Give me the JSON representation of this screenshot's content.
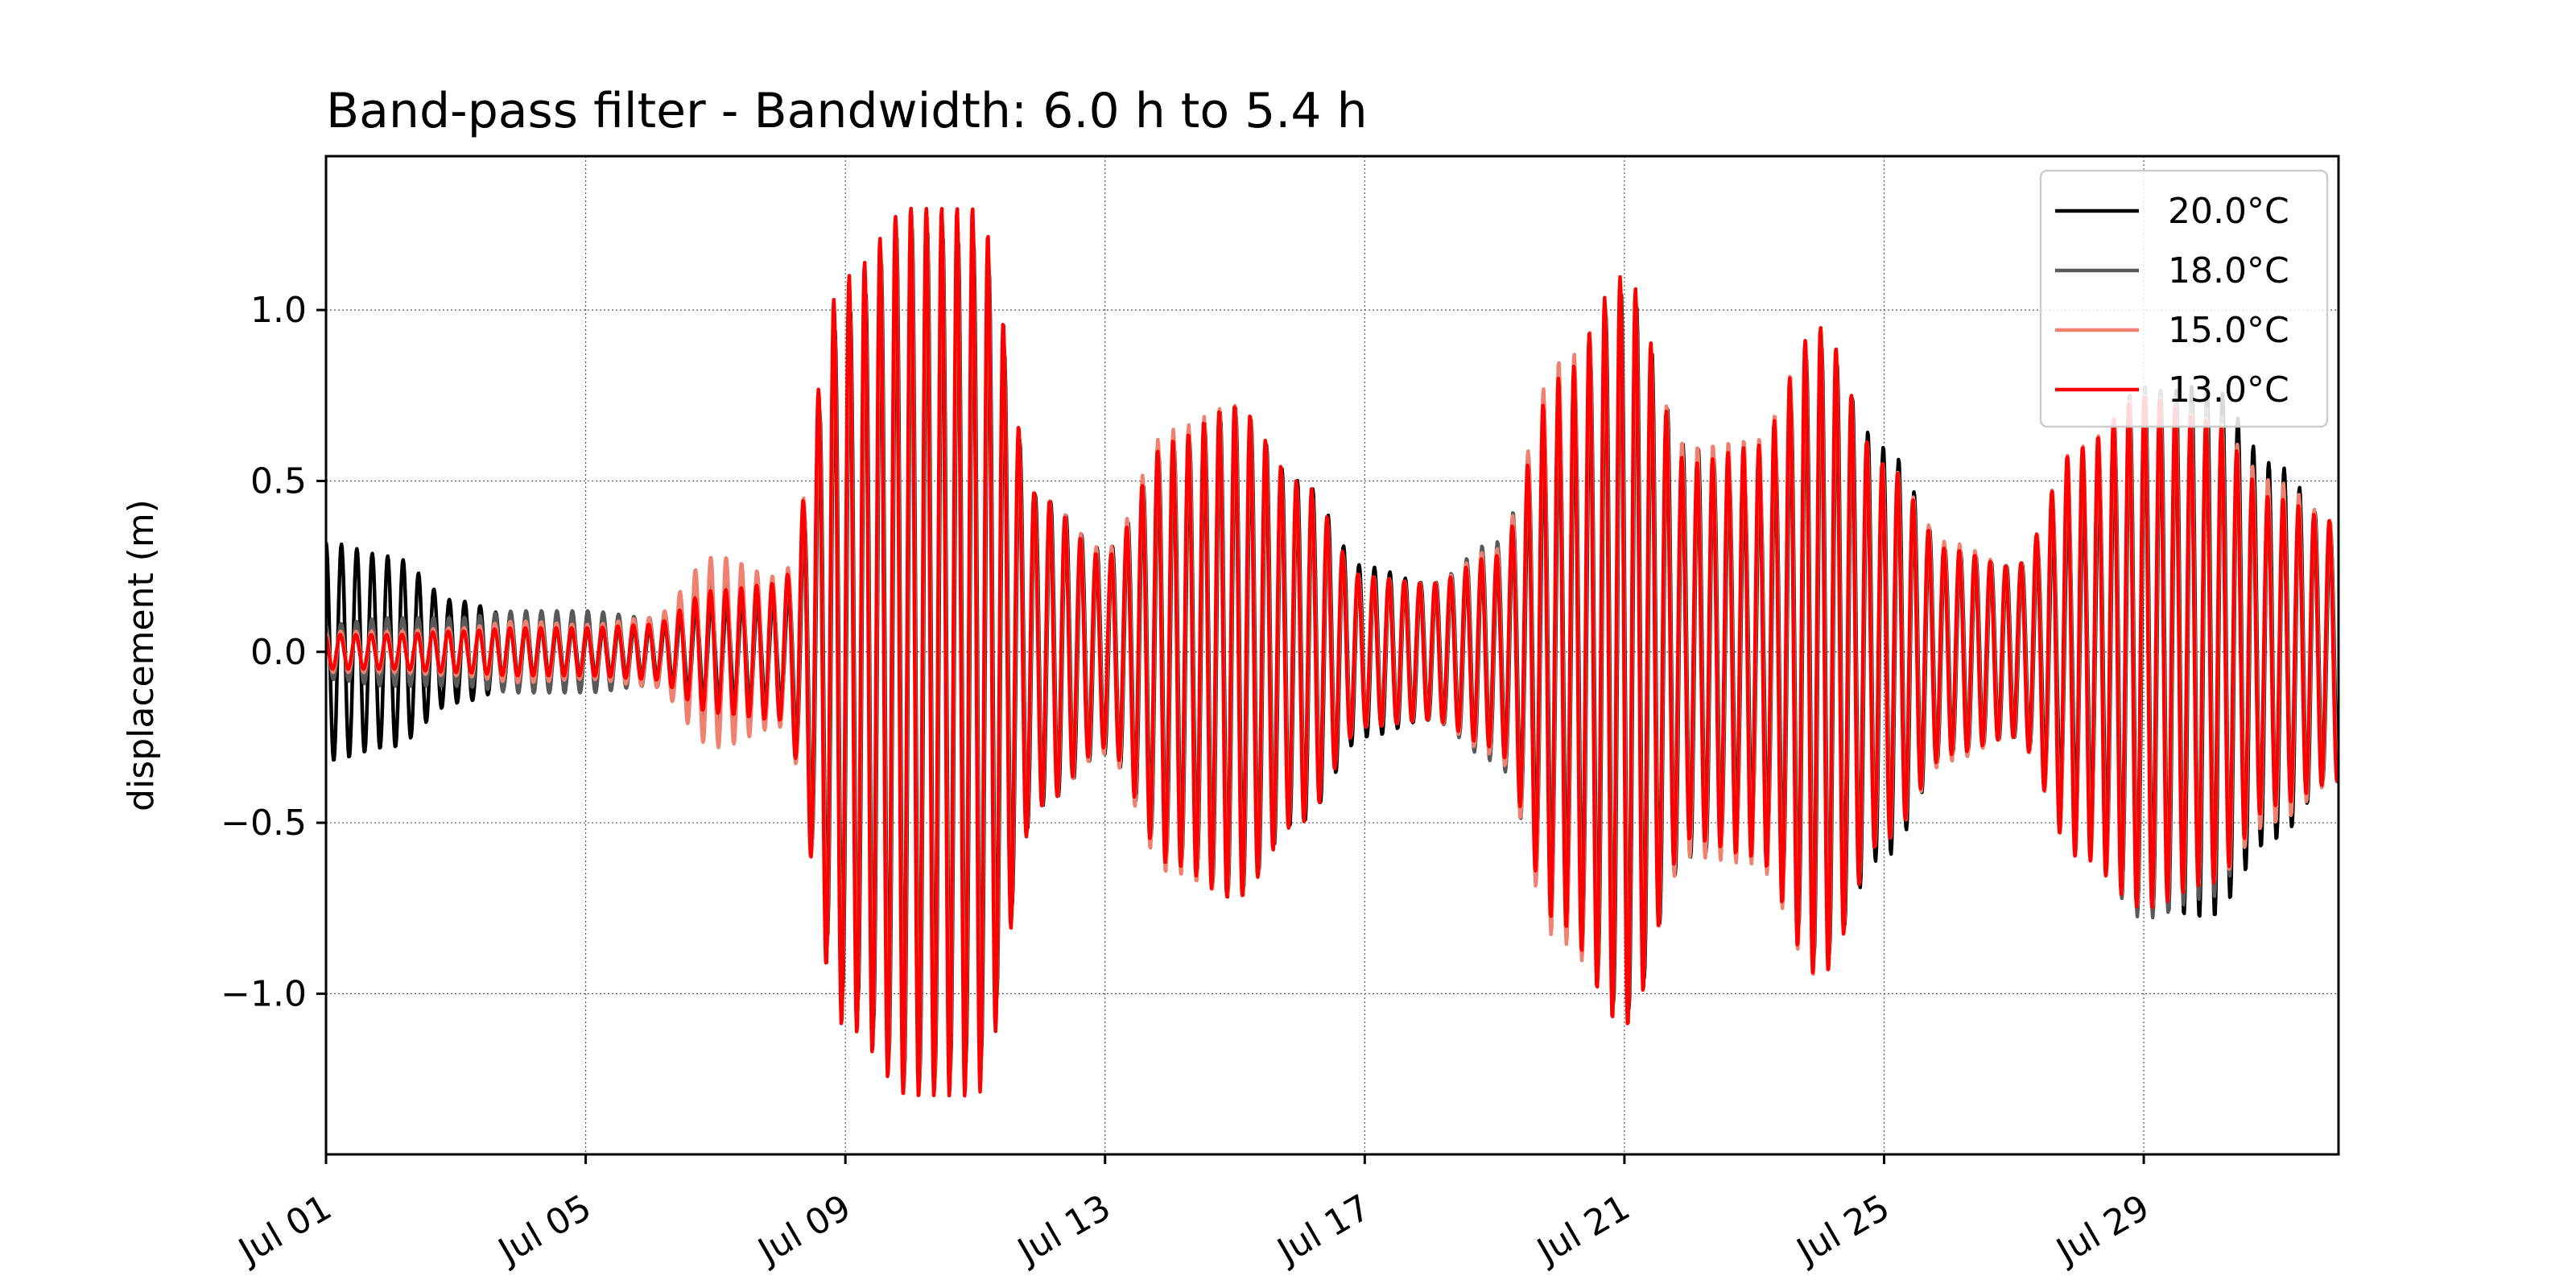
{
  "chart_data": {
    "type": "line",
    "title": "Band-pass filter - Bandwidth: 6.0 h to 5.4 h",
    "xlabel": "",
    "ylabel": "displacement (m)",
    "x_unit": "days since Jul 01",
    "xlim": [
      "Jul 01",
      "Aug 01"
    ],
    "ylim": [
      -1.47,
      1.45
    ],
    "x_ticks": [
      "Jul 01",
      "Jul 05",
      "Jul 09",
      "Jul 13",
      "Jul 17",
      "Jul 21",
      "Jul 25",
      "Jul 29"
    ],
    "y_ticks": [
      -1.0,
      -0.5,
      0.0,
      0.5,
      1.0
    ],
    "y_tick_labels": [
      "−1.0",
      "−0.5",
      "0.0",
      "0.5",
      "1.0"
    ],
    "grid": true,
    "legend_position": "top-right",
    "period_hours": 5.7,
    "series": [
      {
        "name": "20.0°C",
        "color": "#000000",
        "envelope": [
          [
            "Jul 01",
            0.32
          ],
          [
            "Jul 02",
            0.28
          ],
          [
            "Jul 03",
            0.15
          ],
          [
            "Jul 04",
            0.1
          ],
          [
            "Jul 05",
            0.08
          ],
          [
            "Jul 06",
            0.08
          ],
          [
            "Jul 07",
            0.15
          ],
          [
            "Jul 08",
            0.15
          ],
          [
            "Jul 09",
            1.0
          ],
          [
            "Jul 10",
            1.25
          ],
          [
            "Jul 11",
            1.2
          ],
          [
            "Jul 12",
            0.45
          ],
          [
            "Jul 13",
            0.3
          ],
          [
            "Jul 14",
            0.6
          ],
          [
            "Jul 15",
            0.7
          ],
          [
            "Jul 16",
            0.5
          ],
          [
            "Jul 17",
            0.25
          ],
          [
            "Jul 18",
            0.2
          ],
          [
            "Jul 19",
            0.3
          ],
          [
            "Jul 20",
            0.7
          ],
          [
            "Jul 21",
            1.05
          ],
          [
            "Jul 22",
            0.6
          ],
          [
            "Jul 23",
            0.5
          ],
          [
            "Jul 24",
            0.9
          ],
          [
            "Jul 25",
            0.6
          ],
          [
            "Jul 26",
            0.3
          ],
          [
            "Jul 27",
            0.25
          ],
          [
            "Jul 28",
            0.45
          ],
          [
            "Jul 29",
            0.75
          ],
          [
            "Jul 30",
            0.78
          ],
          [
            "Jul 31",
            0.55
          ],
          [
            "Aug 01",
            0.35
          ]
        ]
      },
      {
        "name": "18.0°C",
        "color": "#595959",
        "envelope": [
          [
            "Jul 01",
            0.08
          ],
          [
            "Jul 02",
            0.1
          ],
          [
            "Jul 03",
            0.1
          ],
          [
            "Jul 04",
            0.12
          ],
          [
            "Jul 05",
            0.12
          ],
          [
            "Jul 06",
            0.1
          ],
          [
            "Jul 07",
            0.22
          ],
          [
            "Jul 08",
            0.2
          ],
          [
            "Jul 09",
            1.0
          ],
          [
            "Jul 10",
            1.28
          ],
          [
            "Jul 11",
            1.22
          ],
          [
            "Jul 12",
            0.42
          ],
          [
            "Jul 13",
            0.28
          ],
          [
            "Jul 14",
            0.62
          ],
          [
            "Jul 15",
            0.72
          ],
          [
            "Jul 16",
            0.48
          ],
          [
            "Jul 17",
            0.22
          ],
          [
            "Jul 18",
            0.2
          ],
          [
            "Jul 19",
            0.32
          ],
          [
            "Jul 20",
            0.8
          ],
          [
            "Jul 21",
            1.05
          ],
          [
            "Jul 22",
            0.55
          ],
          [
            "Jul 23",
            0.55
          ],
          [
            "Jul 24",
            0.88
          ],
          [
            "Jul 25",
            0.55
          ],
          [
            "Jul 26",
            0.3
          ],
          [
            "Jul 27",
            0.25
          ],
          [
            "Jul 28",
            0.55
          ],
          [
            "Jul 29",
            0.78
          ],
          [
            "Jul 30",
            0.72
          ],
          [
            "Jul 31",
            0.45
          ],
          [
            "Aug 01",
            0.38
          ]
        ]
      },
      {
        "name": "15.0°C",
        "color": "#f08070",
        "envelope": [
          [
            "Jul 01",
            0.06
          ],
          [
            "Jul 02",
            0.06
          ],
          [
            "Jul 03",
            0.07
          ],
          [
            "Jul 04",
            0.09
          ],
          [
            "Jul 05",
            0.08
          ],
          [
            "Jul 06",
            0.1
          ],
          [
            "Jul 07",
            0.28
          ],
          [
            "Jul 08",
            0.22
          ],
          [
            "Jul 09",
            1.05
          ],
          [
            "Jul 10",
            1.3
          ],
          [
            "Jul 11",
            1.25
          ],
          [
            "Jul 12",
            0.45
          ],
          [
            "Jul 13",
            0.3
          ],
          [
            "Jul 14",
            0.65
          ],
          [
            "Jul 15",
            0.72
          ],
          [
            "Jul 16",
            0.48
          ],
          [
            "Jul 17",
            0.22
          ],
          [
            "Jul 18",
            0.2
          ],
          [
            "Jul 19",
            0.3
          ],
          [
            "Jul 20",
            0.85
          ],
          [
            "Jul 21",
            1.05
          ],
          [
            "Jul 22",
            0.6
          ],
          [
            "Jul 23",
            0.62
          ],
          [
            "Jul 24",
            0.95
          ],
          [
            "Jul 25",
            0.55
          ],
          [
            "Jul 26",
            0.32
          ],
          [
            "Jul 27",
            0.25
          ],
          [
            "Jul 28",
            0.6
          ],
          [
            "Jul 29",
            0.75
          ],
          [
            "Jul 30",
            0.68
          ],
          [
            "Jul 31",
            0.5
          ],
          [
            "Aug 01",
            0.38
          ]
        ]
      },
      {
        "name": "13.0°C",
        "color": "#ff0000",
        "envelope": [
          [
            "Jul 01",
            0.05
          ],
          [
            "Jul 02",
            0.05
          ],
          [
            "Jul 03",
            0.06
          ],
          [
            "Jul 04",
            0.07
          ],
          [
            "Jul 05",
            0.07
          ],
          [
            "Jul 06",
            0.08
          ],
          [
            "Jul 07",
            0.18
          ],
          [
            "Jul 08",
            0.2
          ],
          [
            "Jul 09",
            1.1
          ],
          [
            "Jul 10",
            1.3
          ],
          [
            "Jul 11",
            1.3
          ],
          [
            "Jul 12",
            0.45
          ],
          [
            "Jul 13",
            0.28
          ],
          [
            "Jul 14",
            0.62
          ],
          [
            "Jul 15",
            0.72
          ],
          [
            "Jul 16",
            0.5
          ],
          [
            "Jul 17",
            0.22
          ],
          [
            "Jul 18",
            0.2
          ],
          [
            "Jul 19",
            0.28
          ],
          [
            "Jul 20",
            0.8
          ],
          [
            "Jul 21",
            1.1
          ],
          [
            "Jul 22",
            0.55
          ],
          [
            "Jul 23",
            0.6
          ],
          [
            "Jul 24",
            0.95
          ],
          [
            "Jul 25",
            0.55
          ],
          [
            "Jul 26",
            0.3
          ],
          [
            "Jul 27",
            0.25
          ],
          [
            "Jul 28",
            0.6
          ],
          [
            "Jul 29",
            0.75
          ],
          [
            "Jul 30",
            0.68
          ],
          [
            "Jul 31",
            0.45
          ],
          [
            "Aug 01",
            0.38
          ]
        ]
      }
    ]
  }
}
